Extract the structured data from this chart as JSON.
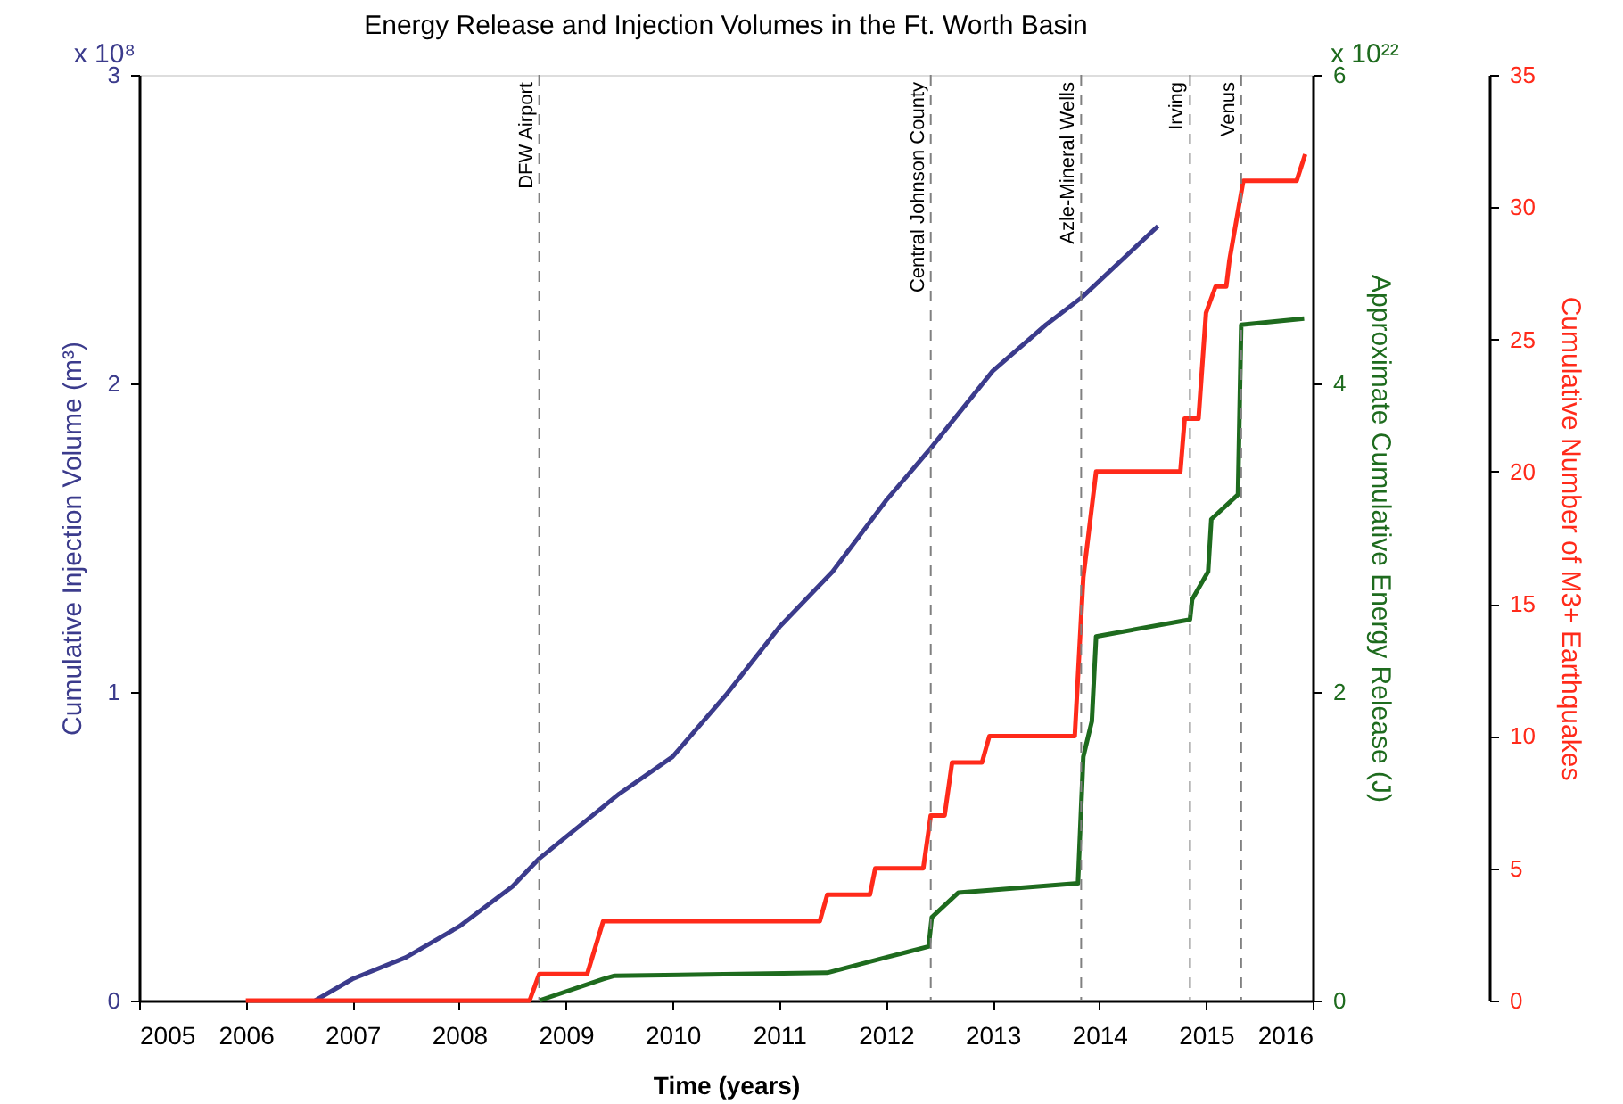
{
  "chart_data": {
    "type": "line",
    "title": "Energy Release and Injection Volumes in the Ft. Worth Basin",
    "xlabel": "Time (years)",
    "ylabel": "Cumulative Injection Volume (m³)",
    "y2label": "Approximate Cumulative Energy Release (J)",
    "y3label": "Cumulative Number of M3+ Earthquakes",
    "xlim": [
      2005,
      2016
    ],
    "xticks": [
      2005,
      2006,
      2007,
      2008,
      2009,
      2010,
      2011,
      2012,
      2013,
      2014,
      2015,
      2016
    ],
    "ylim": [
      0,
      3
    ],
    "yticks": [
      0,
      1,
      2,
      3
    ],
    "y2lim": [
      0,
      6
    ],
    "y2ticks": [
      0,
      2,
      4,
      6
    ],
    "y3lim": [
      0,
      35
    ],
    "y3ticks": [
      0,
      5,
      10,
      15,
      20,
      25,
      30,
      35
    ],
    "grid": false,
    "series": [
      {
        "color": "#3b3b8c",
        "axis": "y",
        "x": [
          2006.65,
          2007,
          2007.5,
          2008,
          2008.5,
          2008.75,
          2009,
          2009.5,
          2010,
          2010.5,
          2011,
          2011.5,
          2012,
          2012.42,
          2013,
          2013.5,
          2013.84,
          2014.55
        ],
        "values": [
          0,
          0.07,
          0.14,
          0.24,
          0.37,
          0.46,
          0.53,
          0.67,
          0.79,
          0.99,
          1.21,
          1.39,
          1.62,
          1.79,
          2.04,
          2.19,
          2.28,
          2.51
        ]
      },
      {
        "color": "#1e6b1e",
        "axis": "y2",
        "x": [
          2008.75,
          2009.35,
          2009.45,
          2011.45,
          2012.0,
          2012.4,
          2012.43,
          2012.68,
          2013.8,
          2013.85,
          2013.93,
          2013.97,
          2014.85,
          2014.87,
          2015.02,
          2015.05,
          2015.3,
          2015.33,
          2015.92
        ],
        "values": [
          0,
          0.14,
          0.16,
          0.18,
          0.28,
          0.35,
          0.54,
          0.7,
          0.76,
          1.58,
          1.81,
          2.36,
          2.47,
          2.6,
          2.78,
          3.12,
          3.28,
          4.38,
          4.42
        ]
      },
      {
        "color": "#ff2a1a",
        "axis": "y3",
        "x": [
          2006,
          2008.66,
          2008.75,
          2009.2,
          2009.35,
          2011.38,
          2011.45,
          2011.85,
          2011.9,
          2012.35,
          2012.42,
          2012.55,
          2012.62,
          2012.9,
          2012.97,
          2013.77,
          2013.85,
          2013.97,
          2014.76,
          2014.8,
          2014.93,
          2015.0,
          2015.09,
          2015.19,
          2015.22,
          2015.35,
          2015.85,
          2015.93
        ],
        "values": [
          0,
          0,
          1,
          1,
          3,
          3,
          4,
          4,
          5,
          5,
          7,
          7,
          9,
          9,
          10,
          10,
          16,
          20,
          20,
          22,
          22,
          26,
          27,
          27,
          28,
          31,
          31,
          32
        ]
      }
    ],
    "ref_lines": [
      {
        "axis": "x",
        "value": 2008.75,
        "label": "DFW Airport",
        "color": "#808080",
        "line_style": "dashed"
      },
      {
        "axis": "x",
        "value": 2012.42,
        "label": "Central Johnson County",
        "color": "#808080",
        "line_style": "dashed"
      },
      {
        "axis": "x",
        "value": 2013.83,
        "label": "Azle-Mineral Wells",
        "color": "#808080",
        "line_style": "dashed"
      },
      {
        "axis": "x",
        "value": 2014.85,
        "label": "Irving",
        "color": "#808080",
        "line_style": "dashed"
      },
      {
        "axis": "x",
        "value": 2015.33,
        "label": "Venus",
        "color": "#808080",
        "line_style": "dashed"
      }
    ],
    "annotations": [
      "x 10⁸",
      "x 10²²"
    ]
  }
}
